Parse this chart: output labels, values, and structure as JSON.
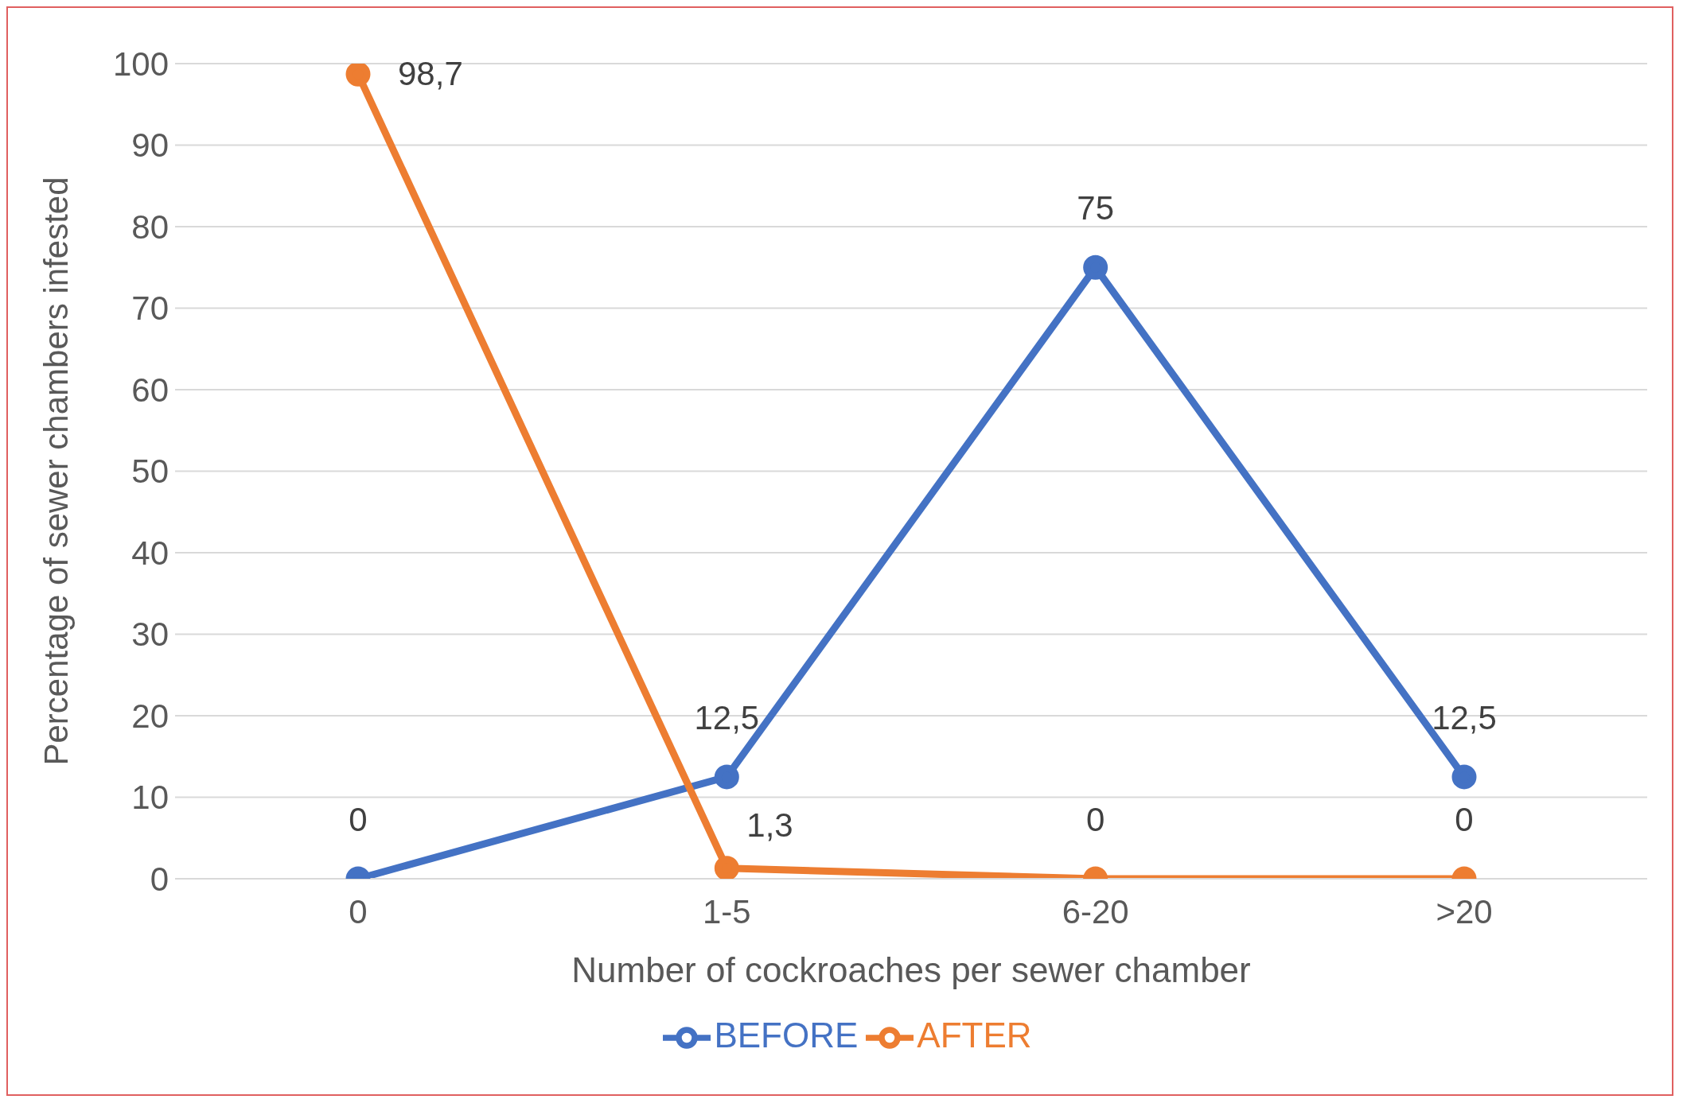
{
  "chart_data": {
    "type": "line",
    "xlabel": "Number  of cockroaches per sewer  chamber",
    "ylabel": "Percentage  of  sewer  chambers infested",
    "categories": [
      "0",
      "1-5",
      "6-20",
      ">20"
    ],
    "series": [
      {
        "name": "BEFORE",
        "color": "#4472c4",
        "values": [
          0,
          12.5,
          75,
          12.5
        ],
        "value_labels": [
          "0",
          "12,5",
          "75",
          "12,5"
        ]
      },
      {
        "name": "AFTER",
        "color": "#ed7d31",
        "values": [
          98.7,
          1.3,
          0,
          0
        ],
        "value_labels": [
          "98,7",
          "1,3",
          "0",
          "0"
        ]
      }
    ],
    "ylim": [
      0,
      100
    ],
    "yticks": [
      0,
      10,
      20,
      30,
      40,
      50,
      60,
      70,
      80,
      90,
      100
    ],
    "grid": "y",
    "legend": "bottom",
    "marker": "circle",
    "line_style": "solid"
  }
}
